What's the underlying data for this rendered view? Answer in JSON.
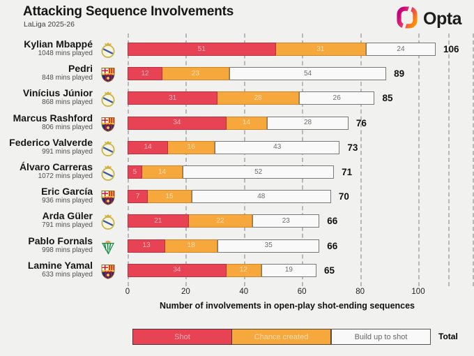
{
  "header": {
    "title": "Attacking Sequence Involvements",
    "subtitle": "LaLiga 2025-26",
    "brand": "Opta"
  },
  "chart_data": {
    "type": "bar",
    "orientation": "horizontal",
    "stacked": true,
    "title": "Attacking Sequence Involvements",
    "subtitle": "LaLiga 2025-26",
    "xlabel": "Number of involvements in open-play shot-ending sequences",
    "x_ticks": [
      0,
      20,
      40,
      60,
      80,
      100
    ],
    "xlim": [
      0,
      110
    ],
    "grid": "dashed-vertical",
    "series_names": [
      "Shot",
      "Chance created",
      "Build up to shot"
    ],
    "colors": {
      "shot": "#e84355",
      "chance_created": "#f6a83c",
      "build_up": "#f9f9f9",
      "background": "#f1f1f0"
    },
    "players": [
      {
        "name": "Kylian Mbappé",
        "mins": "1048 mins played",
        "club": "real-madrid",
        "values": [
          51,
          31,
          24
        ],
        "total": 106
      },
      {
        "name": "Pedri",
        "mins": "848 mins played",
        "club": "barcelona",
        "values": [
          12,
          23,
          54
        ],
        "total": 89
      },
      {
        "name": "Vinícius Júnior",
        "mins": "868 mins played",
        "club": "real-madrid",
        "values": [
          31,
          28,
          26
        ],
        "total": 85
      },
      {
        "name": "Marcus Rashford",
        "mins": "806 mins played",
        "club": "barcelona",
        "values": [
          34,
          14,
          28
        ],
        "total": 76
      },
      {
        "name": "Federico Valverde",
        "mins": "991 mins played",
        "club": "real-madrid",
        "values": [
          14,
          16,
          43
        ],
        "total": 73
      },
      {
        "name": "Álvaro Carreras",
        "mins": "1072 mins played",
        "club": "real-madrid",
        "values": [
          5,
          14,
          52
        ],
        "total": 71
      },
      {
        "name": "Eric García",
        "mins": "936 mins played",
        "club": "barcelona",
        "values": [
          7,
          15,
          48
        ],
        "total": 70
      },
      {
        "name": "Arda Güler",
        "mins": "791 mins played",
        "club": "real-madrid",
        "values": [
          21,
          22,
          23
        ],
        "total": 66
      },
      {
        "name": "Pablo Fornals",
        "mins": "998 mins played",
        "club": "real-betis",
        "values": [
          13,
          18,
          35
        ],
        "total": 66
      },
      {
        "name": "Lamine Yamal",
        "mins": "633 mins played",
        "club": "barcelona",
        "values": [
          34,
          12,
          19
        ],
        "total": 65
      }
    ]
  },
  "legend": {
    "items": [
      {
        "label": "Shot"
      },
      {
        "label": "Chance created"
      },
      {
        "label": "Build up to shot"
      }
    ],
    "total_label": "Total"
  }
}
